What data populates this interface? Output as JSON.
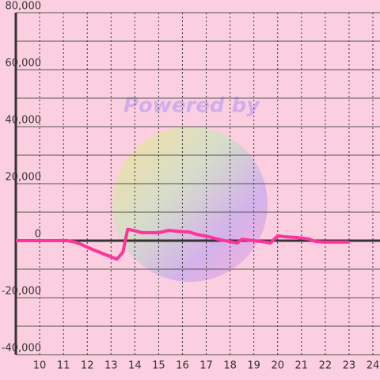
{
  "chart_data": {
    "type": "line",
    "watermark": "Powered by",
    "x": [
      9,
      11.16,
      11.5,
      11.8,
      12.2,
      12.5,
      12.8,
      13.25,
      13.5,
      13.7,
      14.0,
      14.3,
      15.0,
      15.4,
      15.8,
      16.3,
      16.6,
      17.1,
      17.6,
      18.1,
      18.3,
      18.5,
      19.0,
      19.5,
      19.7,
      20.0,
      20.3,
      20.8,
      21.3,
      21.6,
      22.0,
      23.0
    ],
    "series": [
      {
        "color": "#ff3399",
        "values": [
          0,
          0,
          -500,
          -1500,
          -3000,
          -4000,
          -5000,
          -6500,
          -4000,
          4000,
          3500,
          2800,
          2800,
          3600,
          3300,
          3000,
          2200,
          1400,
          300,
          -500,
          -800,
          500,
          0,
          -500,
          -800,
          1700,
          1400,
          1100,
          600,
          -300,
          -500,
          -500
        ]
      }
    ],
    "xlim": [
      9,
      24.3
    ],
    "xticks": [
      10,
      11,
      12,
      13,
      14,
      15,
      16,
      17,
      18,
      19,
      20,
      21,
      22,
      23,
      24
    ],
    "ylim": [
      -40000,
      80000
    ],
    "yticks": [
      {
        "value": 80000,
        "label": "80,000"
      },
      {
        "value": 60000,
        "label": "60,000"
      },
      {
        "value": 40000,
        "label": "40,000"
      },
      {
        "value": 20000,
        "label": "20,000"
      },
      0,
      {
        "value": -20000,
        "label": "-20,000"
      },
      {
        "value": -40000,
        "label": "-40,000"
      }
    ],
    "ygrid": [
      70000,
      50000,
      30000,
      10000,
      -10000,
      -30000
    ],
    "grid": true
  }
}
